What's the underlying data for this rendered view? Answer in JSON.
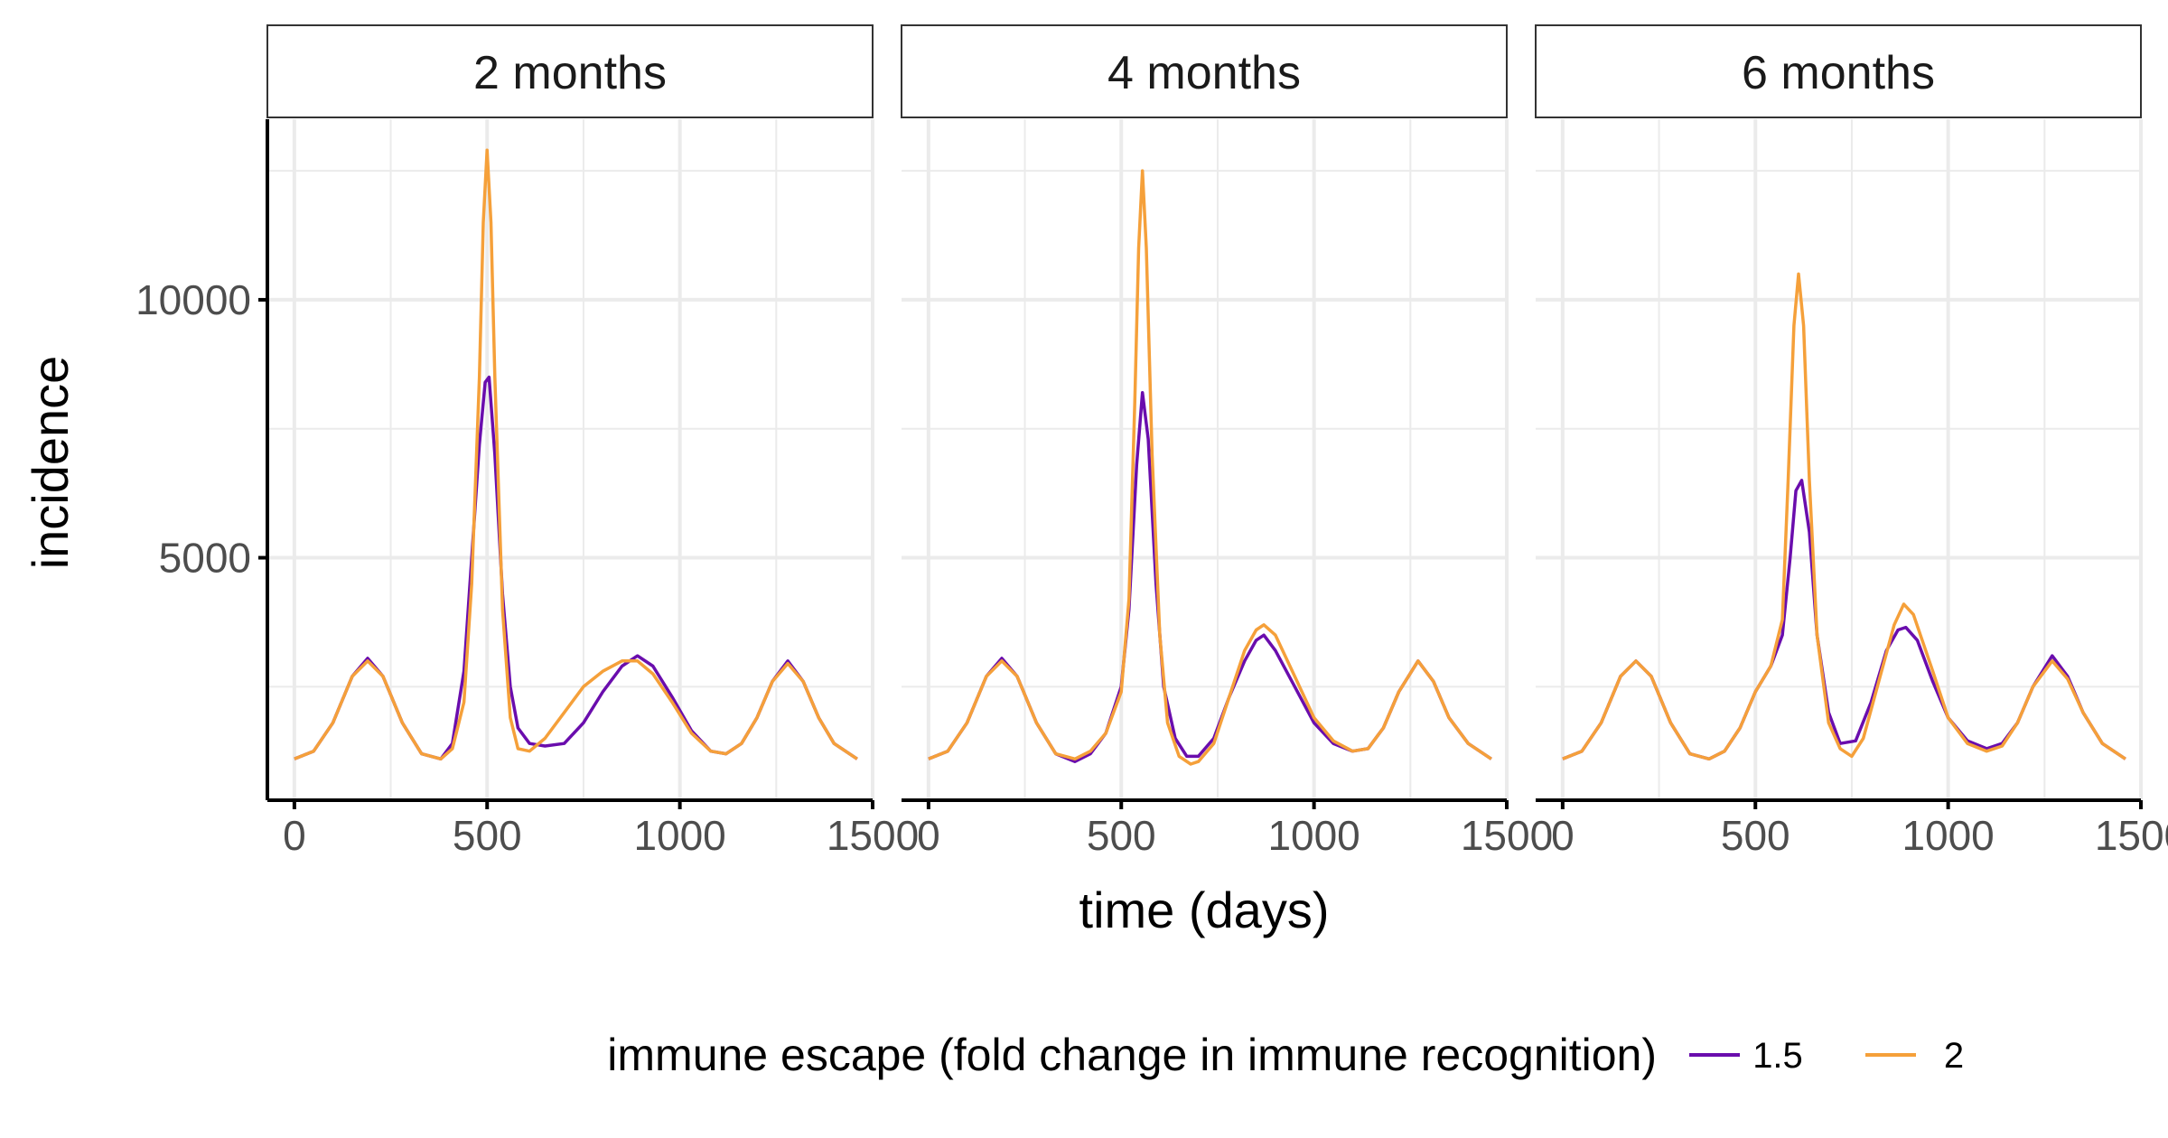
{
  "chart_data": {
    "type": "line",
    "xlabel": "time (days)",
    "ylabel": "incidence",
    "xlim": [
      -70,
      1500
    ],
    "ylim": [
      300,
      13500
    ],
    "x_ticks": [
      0,
      500,
      1000,
      1500
    ],
    "x_tick_labels": [
      "0",
      "500",
      "1000",
      "1500"
    ],
    "y_ticks": [
      5000,
      10000
    ],
    "y_tick_labels": [
      "5000",
      "10000"
    ],
    "grid": true,
    "legend": {
      "title": "immune escape (fold change in immune recognition)",
      "position": "bottom",
      "entries": [
        {
          "label": "1.5",
          "color": "#6a0dad"
        },
        {
          "label": "2",
          "color": "#f5a03a"
        }
      ]
    },
    "panels": [
      {
        "title": "2 months",
        "series": [
          {
            "name": "1.5",
            "color": "#6a0dad",
            "x": [
              0,
              50,
              100,
              150,
              190,
              230,
              280,
              330,
              380,
              410,
              440,
              460,
              480,
              495,
              505,
              520,
              540,
              560,
              580,
              610,
              650,
              700,
              750,
              800,
              850,
              890,
              930,
              980,
              1030,
              1080,
              1120,
              1160,
              1200,
              1240,
              1280,
              1320,
              1360,
              1400,
              1460
            ],
            "y": [
              1100,
              1250,
              1800,
              2700,
              3050,
              2700,
              1800,
              1200,
              1100,
              1400,
              2800,
              5000,
              7200,
              8400,
              8500,
              7000,
              4300,
              2500,
              1700,
              1400,
              1350,
              1400,
              1800,
              2400,
              2900,
              3100,
              2900,
              2300,
              1650,
              1250,
              1200,
              1400,
              1900,
              2600,
              3000,
              2600,
              1900,
              1400,
              1100
            ]
          },
          {
            "name": "2",
            "color": "#f5a03a",
            "x": [
              0,
              50,
              100,
              150,
              190,
              230,
              280,
              330,
              380,
              410,
              440,
              460,
              480,
              490,
              500,
              510,
              520,
              540,
              560,
              580,
              610,
              650,
              700,
              750,
              800,
              850,
              890,
              930,
              980,
              1030,
              1080,
              1120,
              1160,
              1200,
              1240,
              1280,
              1320,
              1360,
              1400,
              1460
            ],
            "y": [
              1100,
              1250,
              1800,
              2700,
              3000,
              2700,
              1800,
              1200,
              1100,
              1300,
              2200,
              4500,
              8500,
              11500,
              12900,
              11500,
              8500,
              4000,
              1900,
              1300,
              1250,
              1500,
              2000,
              2500,
              2800,
              3000,
              3000,
              2750,
              2200,
              1600,
              1250,
              1200,
              1400,
              1900,
              2600,
              2950,
              2600,
              1900,
              1400,
              1100
            ]
          }
        ]
      },
      {
        "title": "4 months",
        "series": [
          {
            "name": "1.5",
            "color": "#6a0dad",
            "x": [
              0,
              50,
              100,
              150,
              190,
              230,
              280,
              330,
              380,
              420,
              460,
              500,
              520,
              540,
              555,
              570,
              590,
              610,
              640,
              670,
              700,
              740,
              780,
              820,
              850,
              870,
              900,
              950,
              1000,
              1050,
              1100,
              1140,
              1180,
              1220,
              1270,
              1310,
              1350,
              1400,
              1460
            ],
            "y": [
              1100,
              1250,
              1800,
              2700,
              3050,
              2700,
              1800,
              1200,
              1050,
              1200,
              1600,
              2500,
              4000,
              6800,
              8200,
              7300,
              4500,
              2500,
              1500,
              1150,
              1150,
              1500,
              2300,
              3000,
              3400,
              3500,
              3200,
              2500,
              1800,
              1400,
              1250,
              1300,
              1700,
              2400,
              3000,
              2600,
              1900,
              1400,
              1100
            ]
          },
          {
            "name": "2",
            "color": "#f5a03a",
            "x": [
              0,
              50,
              100,
              150,
              190,
              230,
              280,
              330,
              380,
              420,
              460,
              500,
              520,
              535,
              545,
              555,
              565,
              580,
              600,
              620,
              650,
              680,
              700,
              740,
              780,
              820,
              850,
              870,
              900,
              950,
              1000,
              1050,
              1100,
              1140,
              1180,
              1220,
              1270,
              1310,
              1350,
              1400,
              1460
            ],
            "y": [
              1100,
              1250,
              1800,
              2700,
              3000,
              2700,
              1800,
              1200,
              1100,
              1250,
              1600,
              2400,
              4200,
              8000,
              11000,
              12500,
              11000,
              7000,
              3500,
              1800,
              1150,
              1000,
              1050,
              1400,
              2300,
              3200,
              3600,
              3700,
              3500,
              2700,
              1900,
              1450,
              1250,
              1300,
              1700,
              2400,
              3000,
              2600,
              1900,
              1400,
              1100
            ]
          }
        ]
      },
      {
        "title": "6 months",
        "series": [
          {
            "name": "1.5",
            "color": "#6a0dad",
            "x": [
              0,
              50,
              100,
              150,
              190,
              230,
              280,
              330,
              380,
              420,
              460,
              500,
              540,
              570,
              590,
              605,
              620,
              640,
              660,
              690,
              720,
              760,
              800,
              840,
              870,
              890,
              920,
              960,
              1000,
              1050,
              1100,
              1140,
              1180,
              1220,
              1270,
              1310,
              1350,
              1400,
              1460
            ],
            "y": [
              1100,
              1250,
              1800,
              2700,
              3000,
              2700,
              1800,
              1200,
              1100,
              1250,
              1700,
              2400,
              2900,
              3500,
              5000,
              6300,
              6500,
              5500,
              3500,
              2000,
              1400,
              1450,
              2200,
              3200,
              3600,
              3650,
              3400,
              2600,
              1900,
              1450,
              1300,
              1400,
              1800,
              2500,
              3100,
              2700,
              2000,
              1400,
              1100
            ]
          },
          {
            "name": "2",
            "color": "#f5a03a",
            "x": [
              0,
              50,
              100,
              150,
              190,
              230,
              280,
              330,
              380,
              420,
              460,
              500,
              540,
              570,
              585,
              600,
              612,
              625,
              640,
              660,
              690,
              720,
              750,
              780,
              820,
              860,
              885,
              910,
              960,
              1000,
              1050,
              1100,
              1140,
              1180,
              1220,
              1270,
              1310,
              1350,
              1400,
              1460
            ],
            "y": [
              1100,
              1250,
              1800,
              2700,
              3000,
              2700,
              1800,
              1200,
              1100,
              1250,
              1700,
              2400,
              2900,
              3800,
              6500,
              9500,
              10500,
              9500,
              6500,
              3500,
              1800,
              1300,
              1150,
              1500,
              2600,
              3700,
              4100,
              3900,
              2800,
              1900,
              1400,
              1250,
              1350,
              1800,
              2500,
              3000,
              2650,
              2000,
              1400,
              1100
            ]
          }
        ]
      }
    ]
  }
}
